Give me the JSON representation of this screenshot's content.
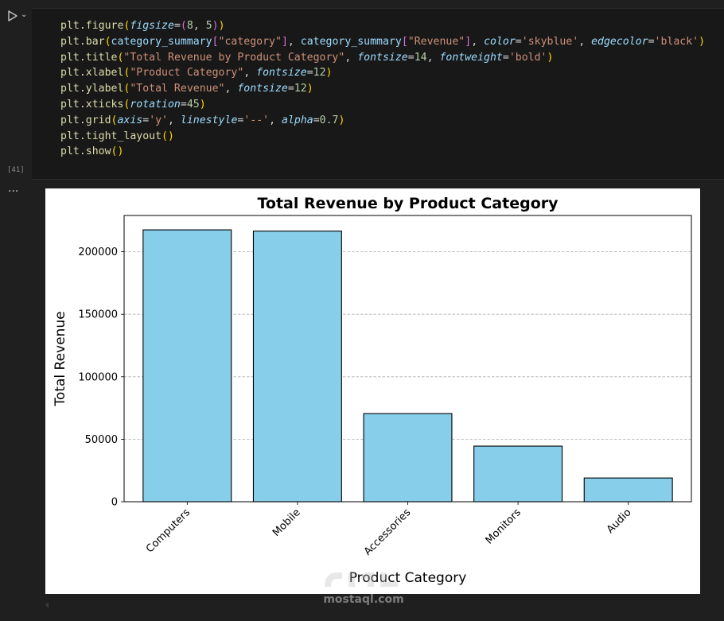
{
  "cell": {
    "execution_count": "[41]",
    "code_lines": [
      [
        [
          "fn",
          "plt.figure"
        ],
        [
          "p1",
          "("
        ],
        [
          "kw",
          "figsize"
        ],
        [
          "plain",
          "="
        ],
        [
          "p2",
          "("
        ],
        [
          "num",
          "8"
        ],
        [
          "plain",
          ", "
        ],
        [
          "num",
          "5"
        ],
        [
          "p2",
          ")"
        ],
        [
          "p1",
          ")"
        ]
      ],
      [
        [
          "fn",
          "plt.bar"
        ],
        [
          "p1",
          "("
        ],
        [
          "var",
          "category_summary"
        ],
        [
          "p2",
          "["
        ],
        [
          "str",
          "\"category\""
        ],
        [
          "p2",
          "]"
        ],
        [
          "plain",
          ", "
        ],
        [
          "var",
          "category_summary"
        ],
        [
          "p2",
          "["
        ],
        [
          "str",
          "\"Revenue\""
        ],
        [
          "p2",
          "]"
        ],
        [
          "plain",
          ", "
        ],
        [
          "kw",
          "color"
        ],
        [
          "plain",
          "="
        ],
        [
          "str",
          "'skyblue'"
        ],
        [
          "plain",
          ", "
        ],
        [
          "kw",
          "edgecolor"
        ],
        [
          "plain",
          "="
        ],
        [
          "str",
          "'black'"
        ],
        [
          "p1",
          ")"
        ]
      ],
      [
        [
          "fn",
          "plt.title"
        ],
        [
          "p1",
          "("
        ],
        [
          "str",
          "\"Total Revenue by Product Category\""
        ],
        [
          "plain",
          ", "
        ],
        [
          "kw",
          "fontsize"
        ],
        [
          "plain",
          "="
        ],
        [
          "num",
          "14"
        ],
        [
          "plain",
          ", "
        ],
        [
          "kw",
          "fontweight"
        ],
        [
          "plain",
          "="
        ],
        [
          "str",
          "'bold'"
        ],
        [
          "p1",
          ")"
        ]
      ],
      [
        [
          "fn",
          "plt.xlabel"
        ],
        [
          "p1",
          "("
        ],
        [
          "str",
          "\"Product Category\""
        ],
        [
          "plain",
          ", "
        ],
        [
          "kw",
          "fontsize"
        ],
        [
          "plain",
          "="
        ],
        [
          "num",
          "12"
        ],
        [
          "p1",
          ")"
        ]
      ],
      [
        [
          "fn",
          "plt.ylabel"
        ],
        [
          "p1",
          "("
        ],
        [
          "str",
          "\"Total Revenue\""
        ],
        [
          "plain",
          ", "
        ],
        [
          "kw",
          "fontsize"
        ],
        [
          "plain",
          "="
        ],
        [
          "num",
          "12"
        ],
        [
          "p1",
          ")"
        ]
      ],
      [
        [
          "fn",
          "plt.xticks"
        ],
        [
          "p1",
          "("
        ],
        [
          "kw",
          "rotation"
        ],
        [
          "plain",
          "="
        ],
        [
          "num",
          "45"
        ],
        [
          "p1",
          ")"
        ]
      ],
      [
        [
          "fn",
          "plt.grid"
        ],
        [
          "p1",
          "("
        ],
        [
          "kw",
          "axis"
        ],
        [
          "plain",
          "="
        ],
        [
          "str",
          "'y'"
        ],
        [
          "plain",
          ", "
        ],
        [
          "kw",
          "linestyle"
        ],
        [
          "plain",
          "="
        ],
        [
          "str",
          "'--'"
        ],
        [
          "plain",
          ", "
        ],
        [
          "kw",
          "alpha"
        ],
        [
          "plain",
          "="
        ],
        [
          "num",
          "0.7"
        ],
        [
          "p1",
          ")"
        ]
      ],
      [
        [
          "fn",
          "plt.tight_layout"
        ],
        [
          "p1",
          "()"
        ]
      ],
      [
        [
          "fn",
          "plt.show"
        ],
        [
          "p1",
          "()"
        ]
      ]
    ]
  },
  "output": {
    "more_label": "···"
  },
  "colors": {
    "bar_fill": "#87ceeb",
    "bar_edge": "#000000",
    "grid": "#b0b0b0"
  },
  "chart_data": {
    "type": "bar",
    "title": "Total Revenue by Product Category",
    "xlabel": "Product Category",
    "ylabel": "Total Revenue",
    "categories": [
      "Computers",
      "Mobile",
      "Accessories",
      "Monitors",
      "Audio"
    ],
    "values": [
      217500,
      216500,
      70500,
      44500,
      19000
    ],
    "ylim": [
      0,
      229000
    ],
    "yticks": [
      0,
      50000,
      100000,
      150000,
      200000
    ],
    "ytick_labels": [
      "0",
      "50000",
      "100000",
      "150000",
      "200000"
    ],
    "xtick_rotation": 45,
    "grid": "y-dashed"
  },
  "watermark": {
    "text": "mostaql.com"
  }
}
